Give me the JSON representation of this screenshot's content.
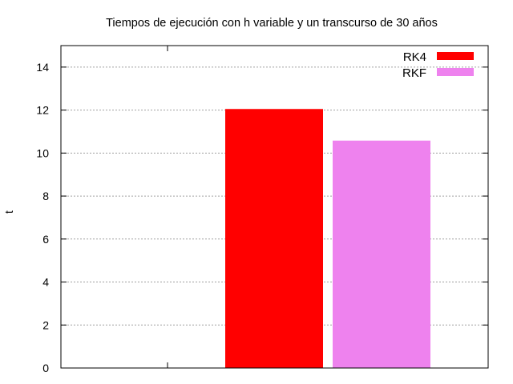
{
  "chart_data": {
    "type": "bar",
    "title": "Tiempos de ejecución con h variable y un transcurso de 30 años",
    "xlabel": "",
    "ylabel": "t",
    "ylim": [
      0,
      15
    ],
    "yticks": [
      0,
      2,
      4,
      6,
      8,
      10,
      12,
      14
    ],
    "grid": true,
    "legend_position": "top-right",
    "series": [
      {
        "name": "RK4",
        "value": 12.05,
        "color": "#ff0000"
      },
      {
        "name": "RKF",
        "value": 10.58,
        "color": "#ee82ee"
      }
    ]
  }
}
